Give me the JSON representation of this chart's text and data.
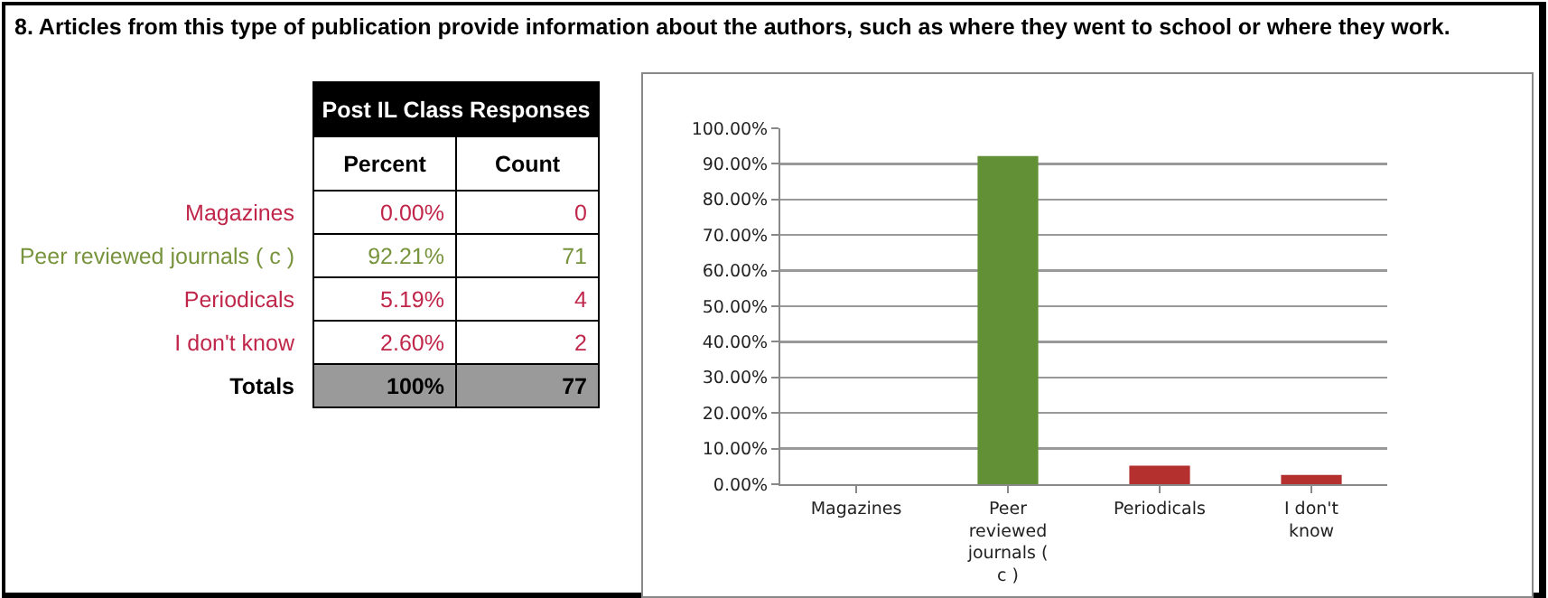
{
  "chart_data": [
    {
      "type": "other",
      "title": "8. Articles from this type of publication provide information about the authors, such as where they went to school or where they work.",
      "subtitle": "Post IL Class Responses",
      "categories": [
        "Magazines",
        "Peer reviewed journals ( c )",
        "Periodicals",
        "I don't know"
      ],
      "colors": [
        "#c0264a",
        "#77933c",
        "#c0264a",
        "#c0264a"
      ],
      "series": [
        {
          "name": "Count",
          "values": [
            0,
            71,
            4,
            2
          ]
        }
      ],
      "annotations": [
        "Percent",
        "Totals"
      ],
      "data_labels": true,
      "totals": [
        "100%",
        "77"
      ]
    },
    {
      "type": "bar",
      "categories": [
        "Magazines",
        "Peer reviewed journals ( c )",
        "Periodicals",
        "I don't know"
      ],
      "values": [
        0,
        92.21,
        5.19,
        2.6
      ],
      "value_labels": [
        "0.00%",
        "92.21%",
        "5.19%",
        "2.60%"
      ],
      "colors": [
        "#953735",
        "#629037",
        "#b3302f",
        "#b3302f"
      ],
      "ylim": [
        0,
        100
      ],
      "yticks": [
        {
          "value": 0,
          "label": "0.00%"
        },
        {
          "value": 10,
          "label": "10.00%"
        },
        {
          "value": 20,
          "label": "20.00%"
        },
        {
          "value": 30,
          "label": "30.00%"
        },
        {
          "value": 40,
          "label": "40.00%"
        },
        {
          "value": 50,
          "label": "50.00%"
        },
        {
          "value": 60,
          "label": "60.00%"
        },
        {
          "value": 70,
          "label": "70.00%"
        },
        {
          "value": 80,
          "label": "80.00%"
        },
        {
          "value": 90,
          "label": "90.00%"
        },
        {
          "value": 100,
          "label": "100.00%"
        }
      ],
      "grid": "y"
    }
  ]
}
